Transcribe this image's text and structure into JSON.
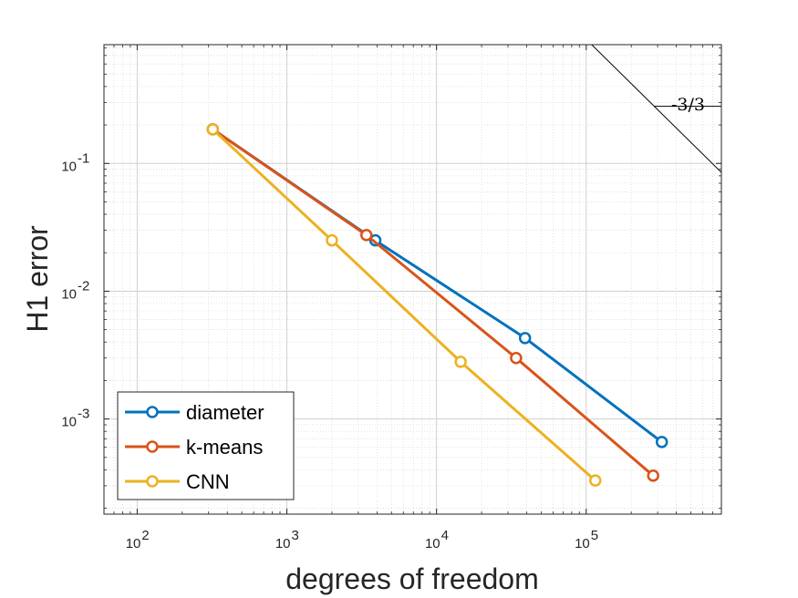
{
  "chart_data": {
    "type": "line",
    "xscale": "log",
    "yscale": "log",
    "xlabel": "degrees of freedom",
    "ylabel": "H1 error",
    "xlim": [
      60,
      800000
    ],
    "ylim": [
      0.00018,
      0.85
    ],
    "grid": true,
    "minor_grid": true,
    "legend_position": "bottom-left",
    "x_ticks": [
      {
        "base": "10",
        "exp": "2",
        "value": 100
      },
      {
        "base": "10",
        "exp": "3",
        "value": 1000
      },
      {
        "base": "10",
        "exp": "4",
        "value": 10000
      },
      {
        "base": "10",
        "exp": "5",
        "value": 100000
      }
    ],
    "y_ticks": [
      {
        "base": "10",
        "exp": "-3",
        "value": 0.001
      },
      {
        "base": "10",
        "exp": "-2",
        "value": 0.01
      },
      {
        "base": "10",
        "exp": "-1",
        "value": 0.1
      }
    ],
    "series": [
      {
        "name": "diameter",
        "color": "#0072BD",
        "x": [
          320,
          3900,
          39000,
          320000
        ],
        "y": [
          0.185,
          0.025,
          0.0043,
          0.00066
        ]
      },
      {
        "name": "k-means",
        "color": "#D95319",
        "x": [
          320,
          3400,
          34000,
          280000
        ],
        "y": [
          0.185,
          0.0275,
          0.003,
          0.00036
        ]
      },
      {
        "name": "CNN",
        "color": "#EDB120",
        "x": [
          320,
          2000,
          14500,
          115000
        ],
        "y": [
          0.185,
          0.025,
          0.0028,
          0.00033
        ]
      }
    ],
    "slope_triangle": {
      "label": "-3/3",
      "line_x": [
        20000,
        800000
      ],
      "line_y": [
        6.0,
        0.085
      ],
      "corner_x": 1000000,
      "corner_y": 0.28
    }
  }
}
